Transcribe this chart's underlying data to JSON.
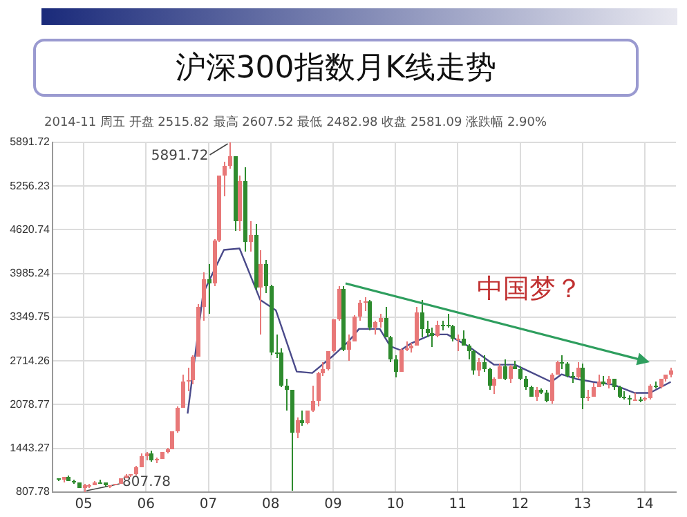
{
  "chart_data": {
    "type": "candlestick",
    "title": "沪深300指数月K线走势",
    "subtitle": "2014-11 周五 开盘 2515.82 最高 2607.52 最低 2482.98 收盘 2581.09 涨跌幅 2.90%",
    "x": [
      "2005-01",
      "2005-02",
      "2005-03",
      "2005-04",
      "2005-05",
      "2005-06",
      "2005-07",
      "2005-08",
      "2005-09",
      "2005-10",
      "2005-11",
      "2005-12",
      "2006-01",
      "2006-02",
      "2006-03",
      "2006-04",
      "2006-05",
      "2006-06",
      "2006-07",
      "2006-08",
      "2006-09",
      "2006-10",
      "2006-11",
      "2006-12",
      "2007-01",
      "2007-02",
      "2007-03",
      "2007-04",
      "2007-05",
      "2007-06",
      "2007-07",
      "2007-08",
      "2007-09",
      "2007-10",
      "2007-11",
      "2007-12",
      "2008-01",
      "2008-02",
      "2008-03",
      "2008-04",
      "2008-05",
      "2008-06",
      "2008-07",
      "2008-08",
      "2008-09",
      "2008-10",
      "2008-11",
      "2008-12",
      "2009-01",
      "2009-02",
      "2009-03",
      "2009-04",
      "2009-05",
      "2009-06",
      "2009-07",
      "2009-08",
      "2009-09",
      "2009-10",
      "2009-11",
      "2009-12",
      "2010-01",
      "2010-02",
      "2010-03",
      "2010-04",
      "2010-05",
      "2010-06",
      "2010-07",
      "2010-08",
      "2010-09",
      "2010-10",
      "2010-11",
      "2010-12",
      "2011-01",
      "2011-02",
      "2011-03",
      "2011-04",
      "2011-05",
      "2011-06",
      "2011-07",
      "2011-08",
      "2011-09",
      "2011-10",
      "2011-11",
      "2011-12",
      "2012-01",
      "2012-02",
      "2012-03",
      "2012-04",
      "2012-05",
      "2012-06",
      "2012-07",
      "2012-08",
      "2012-09",
      "2012-10",
      "2012-11",
      "2012-12",
      "2013-01",
      "2013-02",
      "2013-03",
      "2013-04",
      "2013-05",
      "2013-06",
      "2013-07",
      "2013-08",
      "2013-09",
      "2013-10",
      "2013-11",
      "2013-12",
      "2014-01",
      "2014-02",
      "2014-03",
      "2014-04",
      "2014-05",
      "2014-06",
      "2014-07",
      "2014-08",
      "2014-09",
      "2014-10",
      "2014-11"
    ],
    "ohlc": [
      [
        1000,
        1012,
        960,
        982
      ],
      [
        982,
        1034,
        950,
        1030
      ],
      [
        1030,
        1040,
        960,
        962
      ],
      [
        962,
        990,
        920,
        946
      ],
      [
        946,
        950,
        860,
        870
      ],
      [
        870,
        930,
        807.78,
        900
      ],
      [
        900,
        920,
        860,
        910
      ],
      [
        910,
        960,
        900,
        950
      ],
      [
        950,
        980,
        920,
        940
      ],
      [
        940,
        945,
        880,
        900
      ],
      [
        900,
        915,
        870,
        905
      ],
      [
        905,
        930,
        900,
        923
      ],
      [
        923,
        1015,
        920,
        1012
      ],
      [
        1012,
        1060,
        1000,
        1044
      ],
      [
        1044,
        1070,
        1020,
        1059
      ],
      [
        1059,
        1180,
        1055,
        1171
      ],
      [
        1171,
        1380,
        1160,
        1334
      ],
      [
        1334,
        1400,
        1270,
        1376
      ],
      [
        1376,
        1420,
        1240,
        1265
      ],
      [
        1265,
        1310,
        1230,
        1300
      ],
      [
        1300,
        1400,
        1290,
        1390
      ],
      [
        1390,
        1450,
        1380,
        1440
      ],
      [
        1440,
        1700,
        1430,
        1689
      ],
      [
        1689,
        2060,
        1680,
        2041
      ],
      [
        2041,
        2520,
        2040,
        2424
      ],
      [
        2424,
        2620,
        2280,
        2442
      ],
      [
        2442,
        2800,
        2380,
        2781
      ],
      [
        2781,
        3550,
        2780,
        3500
      ],
      [
        3500,
        4000,
        3300,
        3903
      ],
      [
        3903,
        4130,
        3400,
        3850
      ],
      [
        3850,
        4480,
        3800,
        4471
      ],
      [
        4471,
        5410,
        4450,
        5405
      ],
      [
        5405,
        5620,
        5100,
        5552
      ],
      [
        5552,
        5891.72,
        5500,
        5688
      ],
      [
        5688,
        5690,
        4600,
        4738
      ],
      [
        4738,
        5400,
        4600,
        5338
      ],
      [
        5338,
        5520,
        4300,
        4435
      ],
      [
        4435,
        4750,
        4300,
        4538
      ],
      [
        4538,
        4700,
        3750,
        3790
      ],
      [
        3790,
        4330,
        3100,
        4122
      ],
      [
        4122,
        4180,
        3700,
        3801
      ],
      [
        3801,
        3820,
        2800,
        2847
      ],
      [
        2847,
        3090,
        2750,
        2839
      ],
      [
        2839,
        2900,
        2330,
        2356
      ],
      [
        2356,
        2450,
        2000,
        2293
      ],
      [
        2293,
        2300,
        830,
        1663
      ],
      [
        1663,
        1900,
        1600,
        1853
      ],
      [
        1853,
        2000,
        1780,
        1817
      ],
      [
        1817,
        2000,
        1800,
        1990
      ],
      [
        1990,
        2350,
        1980,
        2141
      ],
      [
        2141,
        2550,
        2060,
        2535
      ],
      [
        2535,
        2700,
        2500,
        2593
      ],
      [
        2593,
        2850,
        2580,
        2848
      ],
      [
        2848,
        3320,
        2830,
        3310
      ],
      [
        3310,
        3800,
        3300,
        3757
      ],
      [
        3757,
        3800,
        2850,
        2870
      ],
      [
        2870,
        3100,
        2720,
        2998
      ],
      [
        2998,
        3370,
        2990,
        3359
      ],
      [
        3359,
        3600,
        3300,
        3557
      ],
      [
        3557,
        3650,
        3450,
        3575
      ],
      [
        3575,
        3600,
        3150,
        3204
      ],
      [
        3204,
        3300,
        3100,
        3281
      ],
      [
        3281,
        3400,
        3200,
        3346
      ],
      [
        3346,
        3500,
        3050,
        3068
      ],
      [
        3068,
        3080,
        2700,
        2738
      ],
      [
        2738,
        2800,
        2480,
        2563
      ],
      [
        2563,
        2900,
        2550,
        2868
      ],
      [
        2868,
        3000,
        2850,
        2903
      ],
      [
        2903,
        2970,
        2830,
        2936
      ],
      [
        2936,
        3500,
        2930,
        3414
      ],
      [
        3414,
        3600,
        3050,
        3170
      ],
      [
        3170,
        3300,
        3060,
        3128
      ],
      [
        3128,
        3200,
        2920,
        3077
      ],
      [
        3077,
        3300,
        3050,
        3239
      ],
      [
        3239,
        3300,
        3150,
        3237
      ],
      [
        3237,
        3400,
        3200,
        3212
      ],
      [
        3212,
        3230,
        3000,
        3041
      ],
      [
        3041,
        3100,
        2850,
        3044
      ],
      [
        3044,
        3150,
        2930,
        2938
      ],
      [
        2938,
        2950,
        2730,
        2852
      ],
      [
        2852,
        2880,
        2520,
        2573
      ],
      [
        2573,
        2750,
        2500,
        2690
      ],
      [
        2690,
        2790,
        2560,
        2591
      ],
      [
        2591,
        2620,
        2300,
        2346
      ],
      [
        2346,
        2480,
        2240,
        2464
      ],
      [
        2464,
        2680,
        2450,
        2634
      ],
      [
        2634,
        2730,
        2440,
        2455
      ],
      [
        2455,
        2650,
        2400,
        2627
      ],
      [
        2627,
        2720,
        2590,
        2601
      ],
      [
        2601,
        2640,
        2440,
        2462
      ],
      [
        2462,
        2500,
        2300,
        2333
      ],
      [
        2333,
        2360,
        2190,
        2204
      ],
      [
        2204,
        2330,
        2130,
        2293
      ],
      [
        2293,
        2310,
        2230,
        2254
      ],
      [
        2254,
        2290,
        2110,
        2140
      ],
      [
        2140,
        2530,
        2100,
        2523
      ],
      [
        2523,
        2710,
        2510,
        2688
      ],
      [
        2688,
        2790,
        2600,
        2673
      ],
      [
        2673,
        2690,
        2480,
        2495
      ],
      [
        2495,
        2560,
        2400,
        2477
      ],
      [
        2477,
        2700,
        2460,
        2625
      ],
      [
        2625,
        2680,
        2020,
        2172
      ],
      [
        2172,
        2300,
        2140,
        2203
      ],
      [
        2203,
        2400,
        2200,
        2336
      ],
      [
        2336,
        2520,
        2330,
        2409
      ],
      [
        2409,
        2500,
        2350,
        2374
      ],
      [
        2374,
        2500,
        2310,
        2450
      ],
      [
        2450,
        2460,
        2300,
        2330
      ],
      [
        2330,
        2350,
        2180,
        2203
      ],
      [
        2203,
        2280,
        2150,
        2179
      ],
      [
        2179,
        2220,
        2080,
        2147
      ],
      [
        2147,
        2250,
        2130,
        2158
      ],
      [
        2158,
        2200,
        2120,
        2157
      ],
      [
        2157,
        2200,
        2140,
        2165
      ],
      [
        2165,
        2380,
        2160,
        2351
      ],
      [
        2351,
        2420,
        2310,
        2338
      ],
      [
        2338,
        2460,
        2320,
        2451
      ],
      [
        2451,
        2520,
        2410,
        2509
      ],
      [
        2515.82,
        2607.52,
        2482.98,
        2581.09
      ]
    ],
    "colors": [
      "#2e8b2e",
      "#e87878",
      "#2e8b2e",
      "#2e8b2e",
      "#2e8b2e",
      "#e87878",
      "#e87878",
      "#e87878",
      "#2e8b2e",
      "#2e8b2e",
      "#e87878",
      "#e87878",
      "#e87878",
      "#e87878",
      "#e87878",
      "#e87878",
      "#e87878",
      "#e87878",
      "#2e8b2e",
      "#e87878",
      "#e87878",
      "#e87878",
      "#e87878",
      "#e87878",
      "#e87878",
      "#e87878",
      "#e87878",
      "#e87878",
      "#e87878",
      "#2e8b2e",
      "#e87878",
      "#e87878",
      "#e87878",
      "#e87878",
      "#2e8b2e",
      "#e87878",
      "#2e8b2e",
      "#e87878",
      "#2e8b2e",
      "#e87878",
      "#2e8b2e",
      "#2e8b2e",
      "#2e8b2e",
      "#2e8b2e",
      "#2e8b2e",
      "#2e8b2e",
      "#e87878",
      "#2e8b2e",
      "#e87878",
      "#e87878",
      "#e87878",
      "#e87878",
      "#e87878",
      "#e87878",
      "#e87878",
      "#2e8b2e",
      "#e87878",
      "#e87878",
      "#e87878",
      "#e87878",
      "#2e8b2e",
      "#e87878",
      "#e87878",
      "#2e8b2e",
      "#2e8b2e",
      "#2e8b2e",
      "#e87878",
      "#e87878",
      "#e87878",
      "#e87878",
      "#2e8b2e",
      "#2e8b2e",
      "#2e8b2e",
      "#e87878",
      "#2e8b2e",
      "#2e8b2e",
      "#2e8b2e",
      "#e87878",
      "#2e8b2e",
      "#2e8b2e",
      "#2e8b2e",
      "#e87878",
      "#2e8b2e",
      "#2e8b2e",
      "#e87878",
      "#e87878",
      "#2e8b2e",
      "#e87878",
      "#2e8b2e",
      "#2e8b2e",
      "#2e8b2e",
      "#2e8b2e",
      "#e87878",
      "#2e8b2e",
      "#2e8b2e",
      "#e87878",
      "#e87878",
      "#2e8b2e",
      "#2e8b2e",
      "#2e8b2e",
      "#e87878",
      "#2e8b2e",
      "#e87878",
      "#e87878",
      "#e87878",
      "#2e8b2e",
      "#e87878",
      "#2e8b2e",
      "#2e8b2e",
      "#2e8b2e",
      "#2e8b2e",
      "#e87878",
      "#2e8b2e",
      "#e87878",
      "#e87878",
      "#2e8b2e",
      "#e87878",
      "#e87878",
      "#e87878"
    ],
    "series": [
      {
        "type": "line",
        "color": "#4a4a8a",
        "x": [
          "2007-02",
          "2007-05",
          "2007-09",
          "2007-12",
          "2008-04",
          "2008-07",
          "2008-11",
          "2009-02",
          "2009-06",
          "2009-09",
          "2009-11",
          "2010-03",
          "2010-05",
          "2010-07",
          "2010-09",
          "2011-01",
          "2011-04",
          "2011-08",
          "2012-01",
          "2012-05",
          "2012-12",
          "2013-02",
          "2013-05",
          "2013-08",
          "2013-12",
          "2014-04",
          "2014-07",
          "2014-11"
        ],
        "values": [
          1950,
          3700,
          4330,
          4350,
          3600,
          3450,
          2560,
          2540,
          2790,
          3000,
          3180,
          3180,
          2930,
          2870,
          2970,
          3100,
          3100,
          2930,
          2660,
          2660,
          2410,
          2520,
          2450,
          2410,
          2370,
          2250,
          2250,
          2410
        ]
      }
    ],
    "annotations": [
      "中国梦？",
      {
        "text": "5891.72",
        "x": "2007-10",
        "y": 5891.72
      },
      {
        "text": "807.78",
        "x": "2005-06",
        "y": 807.78
      }
    ],
    "xlim": [
      "2004-12",
      "2014-12"
    ],
    "xticks": [
      {
        "value": "2005-06",
        "label": "05"
      },
      {
        "value": "2006-06",
        "label": "06"
      },
      {
        "value": "2007-06",
        "label": "07"
      },
      {
        "value": "2008-06",
        "label": "08"
      },
      {
        "value": "2009-06",
        "label": "09"
      },
      {
        "value": "2010-06",
        "label": "10"
      },
      {
        "value": "2011-06",
        "label": "11"
      },
      {
        "value": "2012-06",
        "label": "12"
      },
      {
        "value": "2013-06",
        "label": "13"
      },
      {
        "value": "2014-06",
        "label": "14"
      }
    ],
    "ylim": [
      807.78,
      5891.72
    ],
    "yticks": [
      807.78,
      1443.27,
      2078.77,
      2714.26,
      3349.75,
      3985.24,
      4620.74,
      5256.23,
      5891.72
    ],
    "grid": true,
    "legend": false
  }
}
